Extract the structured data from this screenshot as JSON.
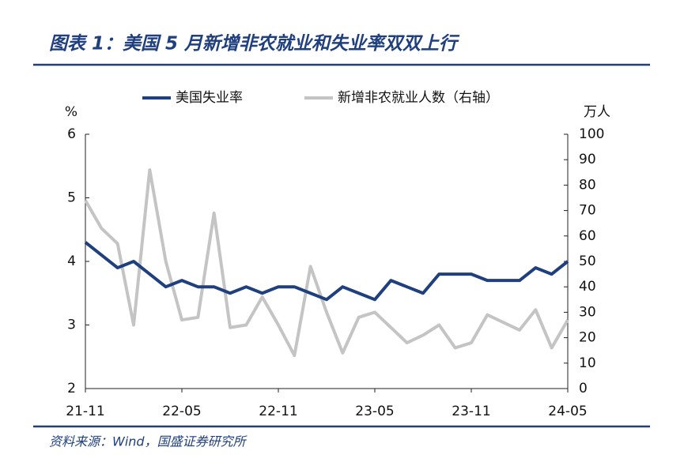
{
  "chart_data": {
    "type": "line",
    "title": "图表 1：美国 5 月新增非农就业和失业率双双上行",
    "source": "资料来源：Wind，国盛证券研究所",
    "ylabel": "%",
    "y2label": "万人",
    "categories": [
      "21-11",
      null,
      null,
      null,
      null,
      null,
      "22-05",
      null,
      null,
      null,
      null,
      null,
      "22-11",
      null,
      null,
      null,
      null,
      null,
      "23-05",
      null,
      null,
      null,
      null,
      null,
      "23-11",
      null,
      null,
      null,
      null,
      null,
      "24-05"
    ],
    "ylim": [
      2,
      6
    ],
    "yticks": [
      2,
      3,
      4,
      5,
      6
    ],
    "y2lim": [
      0,
      100
    ],
    "y2ticks": [
      0,
      10,
      20,
      30,
      40,
      50,
      60,
      70,
      80,
      90,
      100
    ],
    "legend": "top",
    "series": [
      {
        "name": "美国失业率",
        "color": "#1f3f7f",
        "values": [
          4.3,
          4.1,
          3.9,
          4.0,
          3.8,
          3.6,
          3.7,
          3.6,
          3.6,
          3.5,
          3.6,
          3.5,
          3.6,
          3.6,
          3.5,
          3.4,
          3.6,
          3.5,
          3.4,
          3.7,
          3.6,
          3.5,
          3.8,
          3.8,
          3.8,
          3.7,
          3.7,
          3.7,
          3.9,
          3.8,
          4.0
        ]
      },
      {
        "name": "新增非农就业人数（右轴）",
        "color": "#c4c4c4",
        "axis": "y2",
        "values": [
          74,
          63,
          57,
          25,
          86,
          50,
          27,
          28,
          69,
          24,
          25,
          36,
          25,
          13,
          48,
          30,
          14,
          28,
          30,
          24,
          18,
          21,
          25,
          16,
          18,
          29,
          26,
          23,
          31,
          16,
          27
        ]
      }
    ]
  }
}
